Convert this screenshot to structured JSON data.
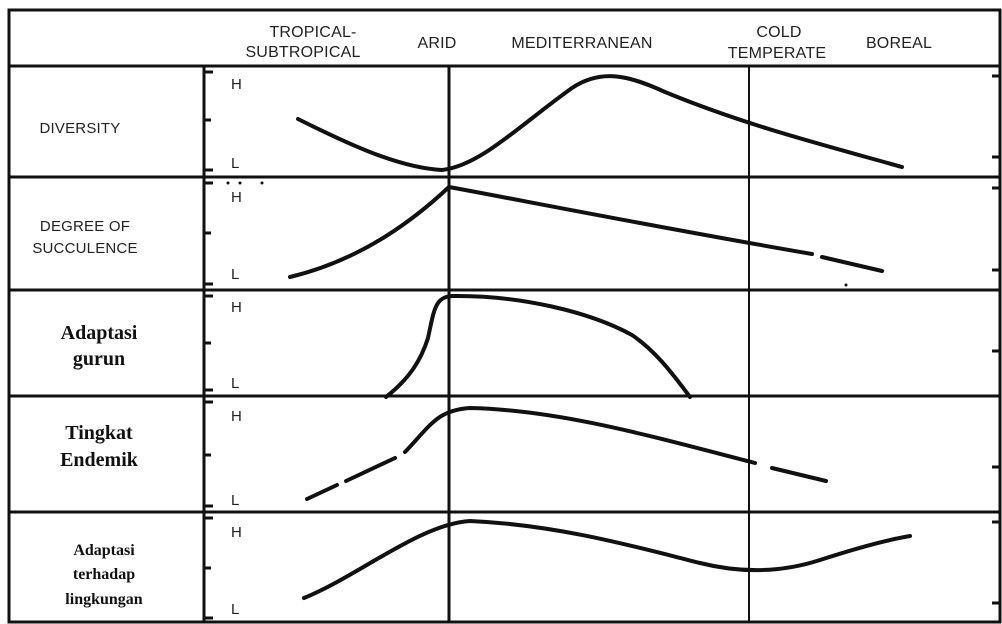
{
  "zones": [
    {
      "line1": "TROPICAL-",
      "line2": "SUBTROPICAL"
    },
    {
      "line1": "ARID",
      "line2": ""
    },
    {
      "line1": "MEDITERRANEAN",
      "line2": ""
    },
    {
      "line1": "COLD",
      "line2": "TEMPERATE"
    },
    {
      "line1": "BOREAL",
      "line2": ""
    }
  ],
  "rows": [
    {
      "label_lines": [
        "DIVERSITY"
      ],
      "high": "H",
      "low": "L",
      "style": "sans"
    },
    {
      "label_lines": [
        "DEGREE OF",
        "SUCCULENCE"
      ],
      "high": "H",
      "low": "L",
      "style": "sans"
    },
    {
      "label_lines": [
        "Adaptasi",
        "gurun"
      ],
      "high": "H",
      "low": "L",
      "style": "serif"
    },
    {
      "label_lines": [
        "Tingkat",
        "Endemik"
      ],
      "high": "H",
      "low": "L",
      "style": "serif"
    },
    {
      "label_lines": [
        "Adaptasi",
        "terhadap",
        "lingkungan"
      ],
      "high": "H",
      "low": "L",
      "style": "serif"
    }
  ],
  "colors": {
    "line": "#111111",
    "background": "#ffffff"
  }
}
